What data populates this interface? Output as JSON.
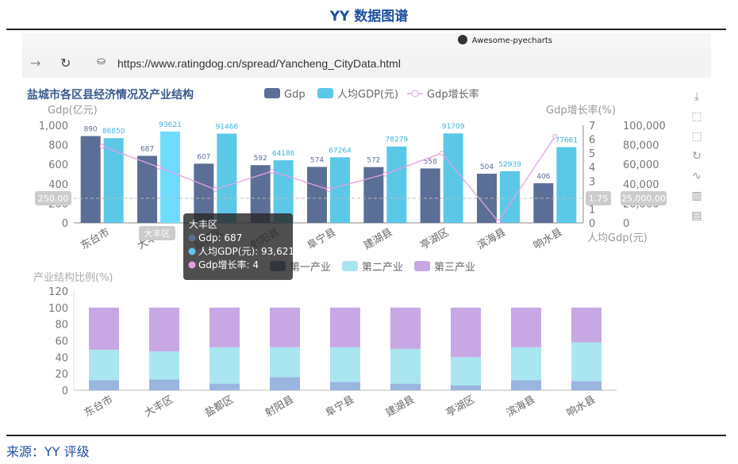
{
  "header": {
    "title": "YY 数据图谱"
  },
  "browser": {
    "tab_title": "Awesome-pyecharts",
    "url": "https://www.ratingdog.cn/spread/Yancheng_CityData.html",
    "back_icon": "arrow-left-icon",
    "reload_icon": "reload-icon",
    "lock_icon": "lock-icon"
  },
  "toolbox": [
    "download-icon",
    "zoom-icon",
    "zoom-reset-icon",
    "restore-icon",
    "line-switch-icon",
    "bar-switch-icon",
    "data-view-icon"
  ],
  "tooltip": {
    "title": "大丰区",
    "rows": [
      {
        "label": "Gdp: 687",
        "color": "#5b6e96"
      },
      {
        "label": "人均GDP(元): 93,621",
        "color": "#5bc8e8"
      },
      {
        "label": "Gdp增长率: 4",
        "color": "#e59fe0"
      }
    ]
  },
  "axis_pointer": {
    "left": "250.00",
    "right1": "1.75",
    "right2": "25,000.00",
    "x": "大丰区"
  },
  "chart_data": [
    {
      "type": "bar",
      "title": "盐城市各区县经济情况及产业结构",
      "categories": [
        "东台市",
        "大丰区",
        "盐都区",
        "射阳县",
        "阜宁县",
        "建湖县",
        "亭湖区",
        "滨海县",
        "响水县"
      ],
      "series": [
        {
          "name": "Gdp",
          "type": "bar",
          "axis": "Gdp(亿元)",
          "values": [
            890,
            687,
            607,
            592,
            574,
            572,
            558,
            504,
            406
          ],
          "color": "#5b6e96"
        },
        {
          "name": "人均GDP(元)",
          "type": "bar",
          "axis": "人均Gdp(元)",
          "values": [
            86850,
            93621,
            91466,
            64186,
            67264,
            78279,
            91709,
            52939,
            77661
          ],
          "color": "#5bc8e8"
        },
        {
          "name": "Gdp增长率",
          "type": "line",
          "axis": "Gdp增长率(%)",
          "values": [
            5.5,
            4,
            2.4,
            3.7,
            2.4,
            3.5,
            5,
            0.1,
            6.2
          ],
          "color": "#e59fe0"
        }
      ],
      "highlight_label": "93621",
      "y_axes": [
        {
          "name": "Gdp(亿元)",
          "ylim": [
            0,
            1000
          ],
          "ticks": [
            "0",
            "200",
            "400",
            "600",
            "800",
            "1,000"
          ]
        },
        {
          "name": "Gdp增长率(%)",
          "ylim": [
            0,
            7
          ],
          "ticks": [
            "0",
            "1",
            "2",
            "3",
            "4",
            "5",
            "6",
            "7"
          ]
        },
        {
          "name": "人均Gdp(元)",
          "ylim": [
            0,
            100000
          ],
          "ticks": [
            "0",
            "20,000",
            "40,000",
            "60,000",
            "80,000",
            "100,000"
          ]
        }
      ],
      "legend": "top"
    },
    {
      "type": "bar",
      "stacked": true,
      "categories": [
        "东台市",
        "大丰区",
        "盐都区",
        "射阳县",
        "阜宁县",
        "建湖县",
        "亭湖区",
        "滨海县",
        "响水县"
      ],
      "ylabel": "产业结构比例(%)",
      "ylim": [
        0,
        120
      ],
      "yticks": [
        "0",
        "20",
        "40",
        "60",
        "80",
        "100",
        "120"
      ],
      "series": [
        {
          "name": "第一产业",
          "values": [
            12,
            13,
            8,
            16,
            10,
            8,
            6,
            12,
            11
          ],
          "color": "#9ab4e0"
        },
        {
          "name": "第二产业",
          "values": [
            37,
            34,
            44,
            36,
            42,
            42,
            34,
            40,
            47
          ],
          "color": "#a9e6f0"
        },
        {
          "name": "第三产业",
          "values": [
            51,
            53,
            48,
            48,
            48,
            50,
            60,
            48,
            42
          ],
          "color": "#c7a8e4"
        }
      ],
      "legend_color_first": "#5b6e96",
      "legend_color_second": "#a9e6f0",
      "legend_color_third": "#c7a8e4"
    }
  ],
  "source": "来源：YY 评级"
}
